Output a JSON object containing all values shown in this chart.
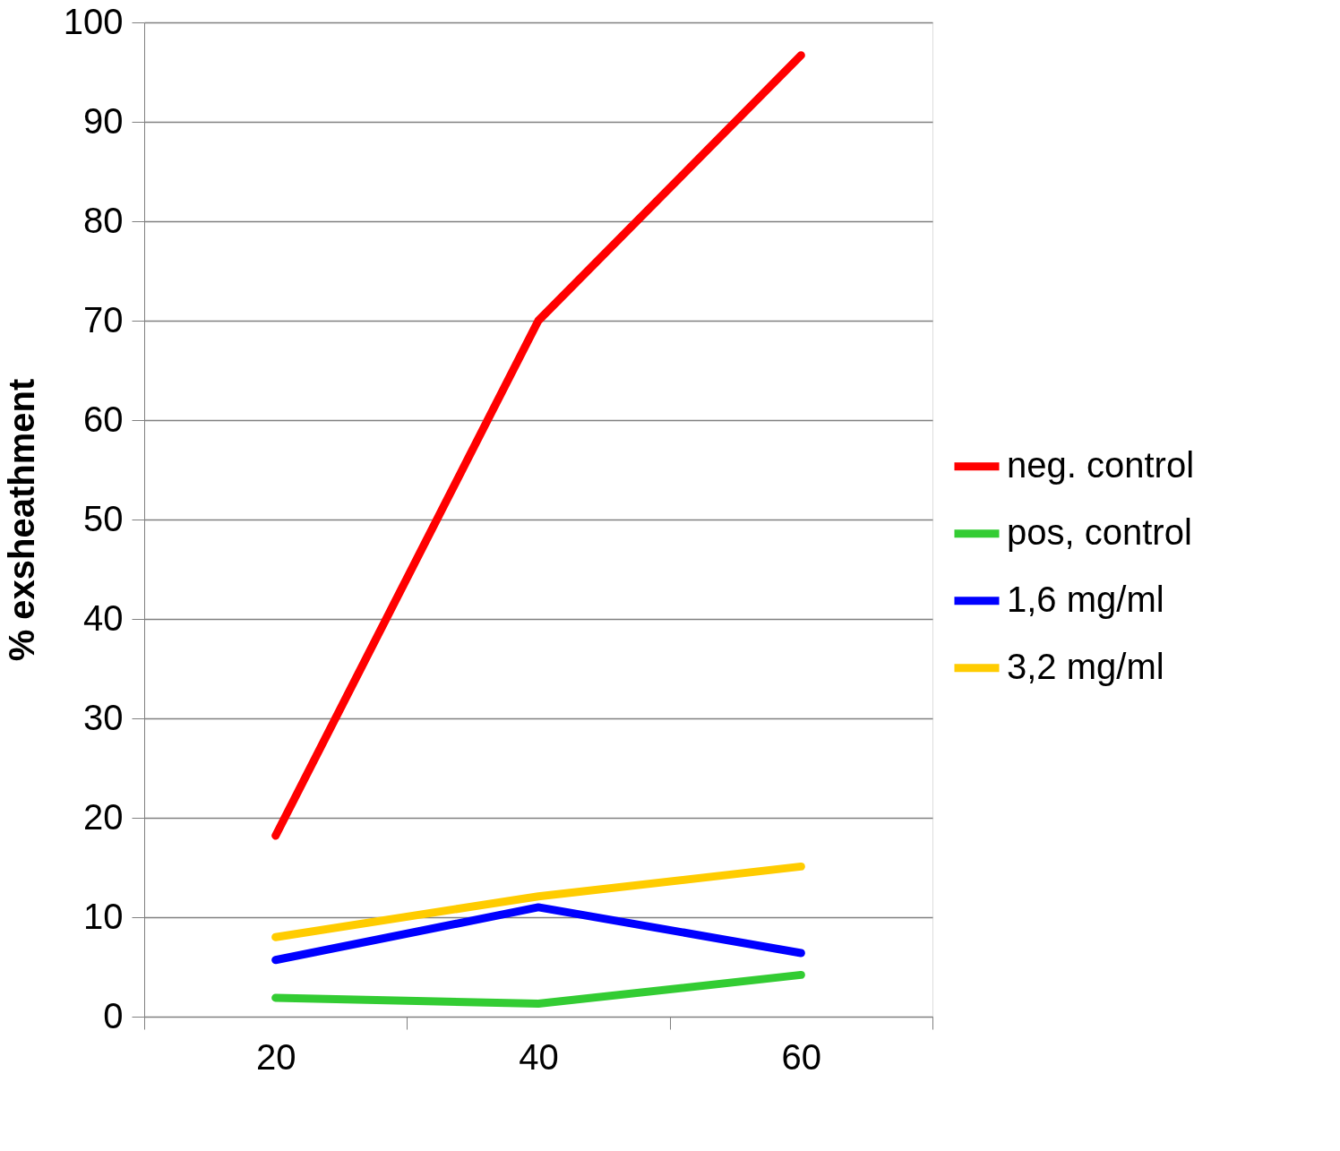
{
  "chart_data": {
    "type": "line",
    "ylabel": "% exsheathment",
    "categories": [
      "20",
      "40",
      "60"
    ],
    "series": [
      {
        "name": "neg. control",
        "color": "#ff0000",
        "values": [
          18.2,
          70.0,
          96.7
        ]
      },
      {
        "name": "pos, control",
        "color": "#33cc33",
        "values": [
          1.9,
          1.3,
          4.2
        ]
      },
      {
        "name": "1,6 mg/ml",
        "color": "#0000ff",
        "values": [
          5.7,
          11.0,
          6.4
        ]
      },
      {
        "name": "3,2 mg/ml",
        "color": "#ffcc00",
        "values": [
          8.0,
          12.1,
          15.1
        ]
      }
    ],
    "ylim": [
      0,
      100
    ],
    "yticks": [
      0,
      10,
      20,
      30,
      40,
      50,
      60,
      70,
      80,
      90,
      100
    ],
    "grid": "y",
    "legend": "right",
    "marker": "none",
    "line_style": "solid"
  }
}
